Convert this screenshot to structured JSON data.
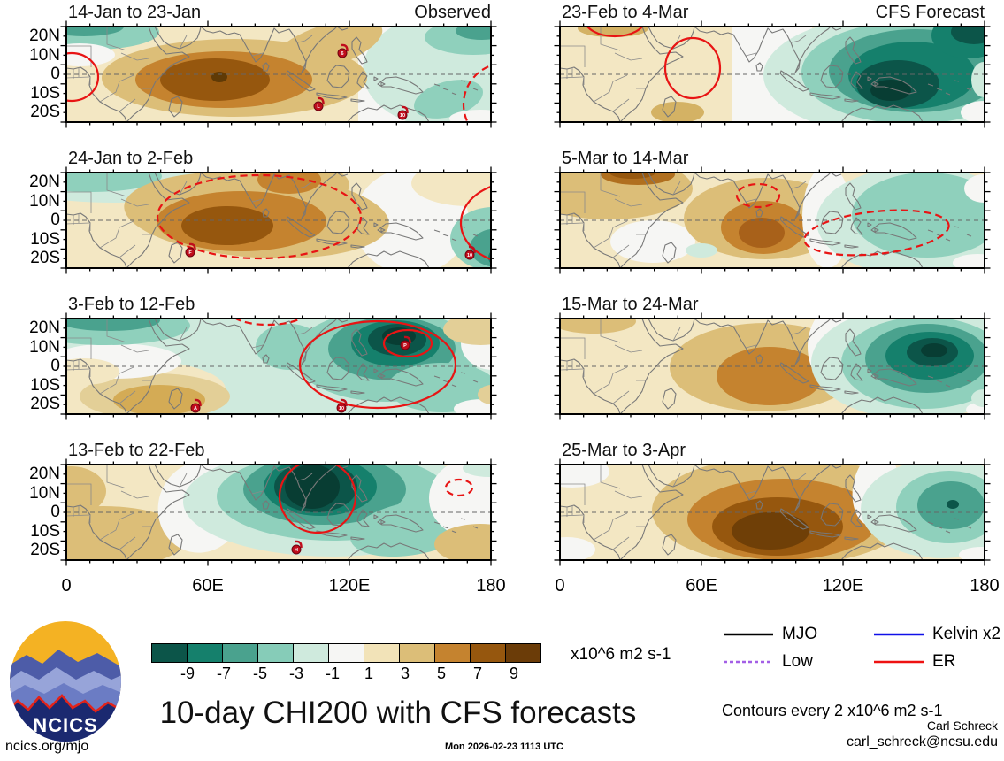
{
  "axis": {
    "y_labels": [
      "20N",
      "10N",
      "0",
      "10S",
      "20S"
    ],
    "x_labels": [
      "0",
      "60E",
      "120E",
      "180"
    ]
  },
  "panels": [
    {
      "title": "14-Jan to 23-Jan",
      "tag": "Observed",
      "base": "#f3e7c3",
      "rects": [
        [
          "#f6f6f4",
          330,
          0,
          150,
          108
        ]
      ],
      "blobs": [
        [
          "#cfeadd",
          430,
          50,
          95,
          65
        ],
        [
          "#8fd0bc",
          460,
          12,
          55,
          20
        ],
        [
          "#8fd0bc",
          432,
          82,
          40,
          20,
          -15
        ],
        [
          "#4aa28e",
          470,
          5,
          30,
          10
        ],
        [
          "#f6f6f4",
          468,
          104,
          35,
          10
        ],
        [
          "#8fd0bc",
          30,
          6,
          75,
          20
        ],
        [
          "#4aa28e",
          20,
          0,
          45,
          11
        ],
        [
          "#f6f6f4",
          15,
          32,
          40,
          13
        ],
        [
          "#dcbe78",
          190,
          58,
          150,
          44
        ],
        [
          "#dcbe78",
          295,
          22,
          65,
          24,
          -18
        ],
        [
          "#c5832f",
          178,
          60,
          100,
          32
        ],
        [
          "#96570e",
          168,
          60,
          62,
          24
        ],
        [
          "#5f3a06",
          173,
          57,
          9,
          6
        ]
      ],
      "contours": [
        [
          6,
          57,
          30,
          27,
          0
        ],
        [
          497,
          88,
          48,
          47,
          1
        ]
      ],
      "storms": [
        [
          312,
          30,
          "6"
        ],
        [
          285,
          90,
          "L"
        ],
        [
          380,
          100,
          "10"
        ]
      ]
    },
    {
      "title": "23-Feb to 4-Mar",
      "tag": "CFS Forecast",
      "base": "#f3e7c3",
      "rects": [
        [
          "#f6f6f4",
          195,
          0,
          90,
          108
        ]
      ],
      "blobs": [
        [
          "#d4b264",
          60,
          2,
          40,
          10
        ],
        [
          "#d4b264",
          133,
          97,
          30,
          12
        ],
        [
          "#cfeadd",
          390,
          55,
          160,
          70
        ],
        [
          "#8fd0bc",
          398,
          52,
          125,
          58
        ],
        [
          "#4aa28e",
          402,
          50,
          98,
          47
        ],
        [
          "#15806c",
          398,
          55,
          72,
          38
        ],
        [
          "#15806c",
          462,
          10,
          42,
          26
        ],
        [
          "#0c5549",
          382,
          65,
          47,
          27
        ],
        [
          "#0c5549",
          468,
          6,
          26,
          14
        ],
        [
          "#083d33",
          374,
          72,
          23,
          12
        ],
        [
          "#f6f6f4",
          479,
          97,
          26,
          13
        ],
        [
          "#cfeadd",
          479,
          60,
          14,
          20
        ]
      ],
      "contours": [
        [
          150,
          47,
          31,
          34,
          0
        ],
        [
          62,
          -8,
          34,
          19,
          0
        ]
      ],
      "storms": []
    },
    {
      "title": "24-Jan to 2-Feb",
      "tag": "",
      "base": "#f3e7c3",
      "rects": [],
      "blobs": [
        [
          "#cfeadd",
          55,
          8,
          130,
          26
        ],
        [
          "#8fd0bc",
          28,
          4,
          80,
          18
        ],
        [
          "#f6f6f4",
          390,
          55,
          65,
          60
        ],
        [
          "#f3e7c3",
          455,
          12,
          65,
          26
        ],
        [
          "#dcbe78",
          215,
          48,
          150,
          48,
          4
        ],
        [
          "#dcbe78",
          258,
          14,
          62,
          26
        ],
        [
          "#c5832f",
          198,
          55,
          96,
          34
        ],
        [
          "#c5832f",
          252,
          8,
          36,
          16
        ],
        [
          "#96570e",
          182,
          60,
          52,
          22
        ],
        [
          "#8fd0bc",
          482,
          75,
          48,
          36
        ],
        [
          "#4aa28e",
          488,
          85,
          32,
          22
        ],
        [
          "#15806c",
          493,
          96,
          16,
          12
        ]
      ],
      "contours": [
        [
          218,
          50,
          115,
          47,
          1
        ],
        [
          508,
          57,
          62,
          46,
          0
        ]
      ],
      "storms": [
        [
          140,
          90,
          "F"
        ],
        [
          456,
          93,
          "10"
        ]
      ]
    },
    {
      "title": "5-Mar to 14-Mar",
      "tag": "",
      "base": "#f3e7c3",
      "rects": [],
      "blobs": [
        [
          "#dcbe78",
          55,
          18,
          95,
          35
        ],
        [
          "#b06f1f",
          88,
          2,
          42,
          12
        ],
        [
          "#96570e",
          82,
          0,
          26,
          7
        ],
        [
          "#f6f6f4",
          105,
          78,
          48,
          24
        ],
        [
          "#dcbe78",
          232,
          52,
          92,
          46
        ],
        [
          "#c5832f",
          230,
          62,
          48,
          30
        ],
        [
          "#a8611a",
          228,
          68,
          26,
          17
        ],
        [
          "#f6f6f4",
          302,
          50,
          28,
          58
        ],
        [
          "#cfeadd",
          405,
          55,
          115,
          62
        ],
        [
          "#8fd0bc",
          415,
          48,
          85,
          48
        ],
        [
          "#cfeadd",
          160,
          88,
          18,
          8
        ],
        [
          "#f6f6f4",
          479,
          18,
          22,
          16
        ],
        [
          "#f6f6f4",
          472,
          102,
          28,
          10
        ]
      ],
      "contours": [
        [
          224,
          26,
          24,
          13,
          1
        ],
        [
          358,
          68,
          82,
          24,
          1,
          -6
        ]
      ],
      "storms": []
    },
    {
      "title": "3-Feb to 12-Feb",
      "tag": "",
      "base": "#cfeadd",
      "rects": [],
      "blobs": [
        [
          "#f3e7c3",
          60,
          80,
          120,
          35
        ],
        [
          "#e3cf97",
          100,
          88,
          85,
          26
        ],
        [
          "#d4ab55",
          105,
          92,
          52,
          17
        ],
        [
          "#f6f6f4",
          55,
          48,
          75,
          20
        ],
        [
          "#f3e7c3",
          20,
          60,
          40,
          15
        ],
        [
          "#8fd0bc",
          45,
          8,
          95,
          22
        ],
        [
          "#4aa28e",
          48,
          2,
          58,
          12
        ],
        [
          "#8fd0bc",
          252,
          32,
          38,
          26
        ],
        [
          "#8fd0bc",
          362,
          42,
          105,
          52
        ],
        [
          "#4aa28e",
          368,
          34,
          72,
          36
        ],
        [
          "#15806c",
          372,
          28,
          50,
          26
        ],
        [
          "#0c5549",
          374,
          24,
          33,
          18
        ],
        [
          "#083d33",
          376,
          20,
          19,
          10
        ],
        [
          "#8fd0bc",
          425,
          78,
          62,
          28
        ],
        [
          "#f6f6f4",
          482,
          28,
          36,
          30
        ],
        [
          "#f6f6f4",
          470,
          102,
          32,
          11
        ],
        [
          "#e3cf97",
          468,
          12,
          42,
          18
        ],
        [
          "#e3cf97",
          481,
          86,
          16,
          11
        ]
      ],
      "contours": [
        [
          352,
          52,
          88,
          49,
          0
        ],
        [
          386,
          28,
          27,
          15,
          0
        ],
        [
          228,
          -7,
          42,
          14,
          1
        ]
      ],
      "storms": [
        [
          146,
          101,
          "A"
        ],
        [
          311,
          101,
          "10"
        ],
        [
          383,
          30,
          "P"
        ]
      ]
    },
    {
      "title": "15-Mar to 24-Mar",
      "tag": "",
      "base": "#f3e7c3",
      "rects": [],
      "blobs": [
        [
          "#dcbe78",
          38,
          3,
          48,
          14
        ],
        [
          "#dcbe78",
          232,
          55,
          108,
          50
        ],
        [
          "#c5832f",
          237,
          65,
          60,
          33
        ],
        [
          "#f6f6f4",
          312,
          32,
          32,
          46
        ],
        [
          "#cfeadd",
          402,
          50,
          118,
          64
        ],
        [
          "#8fd0bc",
          412,
          50,
          94,
          52
        ],
        [
          "#4aa28e",
          415,
          45,
          70,
          39
        ],
        [
          "#15806c",
          418,
          42,
          50,
          27
        ],
        [
          "#0c5549",
          421,
          38,
          29,
          16
        ],
        [
          "#083d33",
          423,
          36,
          15,
          8
        ],
        [
          "#f6f6f4",
          479,
          103,
          20,
          9
        ],
        [
          "#cfeadd",
          479,
          90,
          14,
          10
        ]
      ],
      "contours": [],
      "storms": []
    },
    {
      "title": "13-Feb to 22-Feb",
      "tag": "",
      "base": "#f3e7c3",
      "rects": [],
      "blobs": [
        [
          "#dcbe78",
          42,
          82,
          95,
          35
        ],
        [
          "#dcbe78",
          5,
          30,
          40,
          28
        ],
        [
          "#f6f6f4",
          152,
          48,
          48,
          52,
          18
        ],
        [
          "#cfeadd",
          300,
          42,
          168,
          62
        ],
        [
          "#8fd0bc",
          302,
          36,
          132,
          50
        ],
        [
          "#4aa28e",
          292,
          28,
          92,
          40
        ],
        [
          "#15806c",
          287,
          25,
          64,
          33
        ],
        [
          "#0c5549",
          282,
          25,
          47,
          29
        ],
        [
          "#083d33",
          278,
          25,
          31,
          25
        ],
        [
          "#8fd0bc",
          392,
          72,
          72,
          30,
          -10
        ],
        [
          "#f6f6f4",
          462,
          38,
          52,
          46
        ],
        [
          "#dcbe78",
          468,
          90,
          52,
          23
        ],
        [
          "#cfeadd",
          478,
          4,
          30,
          10
        ]
      ],
      "contours": [
        [
          284,
          36,
          43,
          41,
          0
        ],
        [
          444,
          26,
          15,
          9,
          1
        ]
      ],
      "storms": [
        [
          260,
          96,
          "H"
        ]
      ]
    },
    {
      "title": "25-Mar to 3-Apr",
      "tag": "",
      "base": "#f3e7c3",
      "rects": [],
      "blobs": [
        [
          "#f6f6f4",
          14,
          8,
          42,
          18
        ],
        [
          "#f6f6f4",
          8,
          96,
          32,
          14
        ],
        [
          "#dcbe78",
          252,
          52,
          148,
          62
        ],
        [
          "#dcbe78",
          262,
          14,
          82,
          26
        ],
        [
          "#c5832f",
          252,
          62,
          108,
          46
        ],
        [
          "#96570e",
          246,
          70,
          74,
          33
        ],
        [
          "#6f3f07",
          238,
          75,
          44,
          21
        ],
        [
          "#f6f6f4",
          357,
          28,
          26,
          42,
          8
        ],
        [
          "#cfeadd",
          432,
          50,
          92,
          56
        ],
        [
          "#8fd0bc",
          440,
          48,
          60,
          41
        ],
        [
          "#4aa28e",
          442,
          46,
          38,
          27
        ],
        [
          "#0c5549",
          444,
          45,
          7,
          5
        ],
        [
          "#f6f6f4",
          477,
          102,
          26,
          9
        ]
      ],
      "contours": [],
      "storms": []
    }
  ],
  "colorbar": {
    "colors": [
      "#0c5549",
      "#15806c",
      "#4aa28e",
      "#86ccb8",
      "#cfeadd",
      "#f6f6f4",
      "#f2e3b8",
      "#dcbe78",
      "#c5832f",
      "#96570e",
      "#6b3c08"
    ],
    "ticks": [
      "-9",
      "-7",
      "-5",
      "-3",
      "-1",
      "1",
      "3",
      "5",
      "7",
      "9"
    ],
    "units": "x10^6 m2 s-1"
  },
  "legend": {
    "items": [
      {
        "label": "MJO",
        "color": "#000000",
        "dash": ""
      },
      {
        "label": "Kelvin x2",
        "color": "#1010e8",
        "dash": ""
      },
      {
        "label": "Low",
        "color": "#a35fe6",
        "dash": "4,3"
      },
      {
        "label": "ER",
        "color": "#ee1212",
        "dash": ""
      }
    ],
    "note": "Contours every 2 x10^6 m2 s-1"
  },
  "footer": {
    "main_title": "10-day CHI200 with CFS forecasts",
    "site": "ncics.org/mjo",
    "timestamp": "Mon 2026-02-23 1113 UTC",
    "author": "Carl Schreck",
    "email": "carl_schreck@ncsu.edu",
    "logo_text": "NCICS"
  },
  "chart_data": {
    "type": "heatmap",
    "subtype": "filled-contour longitude-latitude anomaly maps, 8 panels (4 observed, 4 forecast)",
    "variable": "10-day mean CHI200 (200 hPa velocity potential anomaly)",
    "units": "x10^6 m2 s-1",
    "contour_interval": 2,
    "lon_range_deg_e": [
      0,
      180
    ],
    "lat_tick_labels": [
      "20N",
      "10N",
      "0",
      "10S",
      "20S"
    ],
    "lon_tick_labels": [
      "0",
      "60E",
      "120E",
      "180"
    ],
    "colorbar_levels": [
      -9,
      -7,
      -5,
      -3,
      -1,
      1,
      3,
      5,
      7,
      9
    ],
    "colorbar_colors": [
      "#0c5549",
      "#15806c",
      "#4aa28e",
      "#86ccb8",
      "#cfeadd",
      "#f6f6f4",
      "#f2e3b8",
      "#dcbe78",
      "#c5832f",
      "#96570e",
      "#6b3c08"
    ],
    "legend_overlays": [
      "MJO (black contour)",
      "Kelvin x2 (blue contour)",
      "Low (purple contour)",
      "ER (red contour)"
    ],
    "panels": [
      {
        "period": "14-Jan to 23-Jan",
        "source": "Observed",
        "positive_center": {
          "lon_e": 62,
          "lat": -4,
          "approx_peak": 11
        },
        "negative_center": {
          "lon_e": 165,
          "lat": -5,
          "approx_peak": -3
        },
        "red_ER_contours": "solid ring near 0E equator; dashed arc near 170E south"
      },
      {
        "period": "23-Feb to 4-Mar",
        "source": "CFS Forecast",
        "positive_center": {
          "lon_e": 25,
          "lat": 0,
          "approx_peak": 3
        },
        "negative_center": {
          "lon_e": 135,
          "lat": -7,
          "approx_peak": -11
        },
        "red_ER_contours": "solid ring near 55E equator; solid arc near 20E 25N"
      },
      {
        "period": "24-Jan to 2-Feb",
        "source": "Observed",
        "positive_center": {
          "lon_e": 75,
          "lat": -4,
          "approx_peak": 9
        },
        "negative_center": {
          "lon_e": 180,
          "lat": -12,
          "approx_peak": -7
        },
        "red_ER_contours": "large dashed ring 50-120E; solid ring near 180E"
      },
      {
        "period": "5-Mar to 14-Mar",
        "source": "CFS Forecast",
        "positive_center": {
          "lon_e": 85,
          "lat": -4,
          "approx_peak": 7
        },
        "negative_center": {
          "lon_e": 150,
          "lat": -3,
          "approx_peak": -5
        },
        "red_ER_contours": "small dashed ring 80E 10N; dashed elongated ring 115-165E south"
      },
      {
        "period": "3-Feb to 12-Feb",
        "source": "Observed",
        "positive_center": {
          "lon_e": 38,
          "lat": -15,
          "approx_peak": 5
        },
        "negative_center": {
          "lon_e": 140,
          "lat": 10,
          "approx_peak": -13
        },
        "red_ER_contours": "large solid loop 100-165E with inner loop near 145E 12N; dashed arc near 85E 25N"
      },
      {
        "period": "15-Mar to 24-Mar",
        "source": "CFS Forecast",
        "positive_center": {
          "lon_e": 88,
          "lat": -5,
          "approx_peak": 7
        },
        "negative_center": {
          "lon_e": 157,
          "lat": 5,
          "approx_peak": -11
        },
        "red_ER_contours": "none"
      },
      {
        "period": "13-Feb to 22-Feb",
        "source": "Observed",
        "positive_center": {
          "lon_e": 28,
          "lat": -10,
          "approx_peak": 5
        },
        "negative_center": {
          "lon_e": 105,
          "lat": 10,
          "approx_peak": -13
        },
        "red_ER_contours": "solid loop 90-120E; small dashed ring near 165E 12N"
      },
      {
        "period": "25-Mar to 3-Apr",
        "source": "CFS Forecast",
        "positive_center": {
          "lon_e": 90,
          "lat": -10,
          "approx_peak": 11
        },
        "negative_center": {
          "lon_e": 163,
          "lat": -2,
          "approx_peak": -7
        },
        "red_ER_contours": "none"
      }
    ],
    "storm_symbols": [
      {
        "panel": "14-Jan to 23-Jan",
        "labels": [
          "6",
          "L",
          "10"
        ]
      },
      {
        "panel": "24-Jan to 2-Feb",
        "labels": [
          "F",
          "10"
        ]
      },
      {
        "panel": "3-Feb to 12-Feb",
        "labels": [
          "A",
          "10",
          "P"
        ]
      },
      {
        "panel": "13-Feb to 22-Feb",
        "labels": [
          "H"
        ]
      }
    ]
  }
}
